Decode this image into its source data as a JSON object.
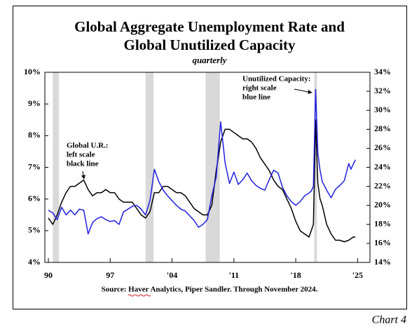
{
  "chart_data": {
    "type": "line",
    "title": [
      "Global Aggregate Unemployment Rate and",
      "Global Unutilized Capacity"
    ],
    "subtitle": "quarterly",
    "source": "Source:  Haver Analytics, Piper Sandler. Through November 2024.",
    "chart_label": "Chart 4",
    "x": [
      1990,
      1990.5,
      1991,
      1991.5,
      1992,
      1992.5,
      1993,
      1993.5,
      1994,
      1994.5,
      1995,
      1995.5,
      1996,
      1996.5,
      1997,
      1997.5,
      1998,
      1998.5,
      1999,
      1999.5,
      2000,
      2000.5,
      2001,
      2001.5,
      2002,
      2002.5,
      2003,
      2003.5,
      2004,
      2004.5,
      2005,
      2005.5,
      2006,
      2006.5,
      2007,
      2007.5,
      2008,
      2008.5,
      2009,
      2009.5,
      2010,
      2010.5,
      2011,
      2011.5,
      2012,
      2012.5,
      2013,
      2013.5,
      2014,
      2014.5,
      2015,
      2015.5,
      2016,
      2016.5,
      2017,
      2017.5,
      2018,
      2018.5,
      2019,
      2019.5,
      2019.75,
      2020,
      2020.25,
      2020.5,
      2020.75,
      2021,
      2021.5,
      2022,
      2022.5,
      2023,
      2023.5,
      2024,
      2024.25,
      2024.5,
      2024.75
    ],
    "series": [
      {
        "name": "Global U.R.",
        "color": "#000000",
        "axis": "y",
        "values": [
          5.4,
          5.2,
          5.5,
          5.9,
          6.2,
          6.4,
          6.4,
          6.5,
          6.6,
          6.3,
          6.1,
          6.2,
          6.2,
          6.3,
          6.2,
          6.2,
          6.0,
          5.9,
          5.9,
          5.9,
          5.7,
          5.5,
          5.4,
          5.6,
          6.2,
          6.2,
          6.4,
          6.4,
          6.3,
          6.2,
          6.2,
          6.1,
          5.9,
          5.7,
          5.6,
          5.5,
          5.5,
          5.8,
          6.9,
          7.8,
          8.2,
          8.2,
          8.1,
          8.0,
          7.9,
          7.9,
          7.8,
          7.6,
          7.3,
          7.1,
          6.9,
          6.6,
          6.4,
          6.3,
          6.0,
          5.7,
          5.3,
          5.0,
          4.9,
          4.8,
          5.0,
          5.2,
          8.5,
          6.5,
          6.0,
          5.8,
          5.2,
          4.9,
          4.7,
          4.7,
          4.65,
          4.7,
          4.75,
          4.8,
          4.8
        ]
      },
      {
        "name": "Unutilized Capacity",
        "color": "#2020e0",
        "axis": "y2",
        "values": [
          19.5,
          19.2,
          18.5,
          19.8,
          19.0,
          19.5,
          19.0,
          19.6,
          19.5,
          17.0,
          18.2,
          18.6,
          18.8,
          18.5,
          18.3,
          18.4,
          18.0,
          19.3,
          19.6,
          19.9,
          20.0,
          19.6,
          19.0,
          20.5,
          23.8,
          22.5,
          21.6,
          21.0,
          20.5,
          20.0,
          19.6,
          19.4,
          18.9,
          18.4,
          17.7,
          18.0,
          18.5,
          21.0,
          23.0,
          28.8,
          24.5,
          22.3,
          23.5,
          22.2,
          22.7,
          23.4,
          22.6,
          22.1,
          21.8,
          21.6,
          22.7,
          23.7,
          23.4,
          21.9,
          21.0,
          20.4,
          20.0,
          20.4,
          21.0,
          21.3,
          21.5,
          22.0,
          32.2,
          25.5,
          23.7,
          22.5,
          21.6,
          20.8,
          21.7,
          22.1,
          22.6,
          24.4,
          23.8,
          24.3,
          24.8
        ]
      }
    ],
    "annotations": [
      {
        "lines": [
          "Global U.R.:",
          "left scale",
          "black line"
        ]
      },
      {
        "lines": [
          "Unutilized Capacity:",
          "right scale",
          "blue line"
        ]
      }
    ],
    "shaded_periods": [
      [
        1990.5,
        1991.2
      ],
      [
        2001.0,
        2001.9
      ],
      [
        2007.8,
        2009.4
      ],
      [
        2020.1,
        2020.4
      ]
    ],
    "shade_color": "#d9d9d9",
    "xlim": [
      1989.6,
      2026.4
    ],
    "xticks": [
      {
        "value": 1990,
        "label": "90"
      },
      {
        "value": 1997,
        "label": "97"
      },
      {
        "value": 2004,
        "label": "'04"
      },
      {
        "value": 2011,
        "label": "'11"
      },
      {
        "value": 2018,
        "label": "'18"
      },
      {
        "value": 2025,
        "label": "'25"
      }
    ],
    "ylim": [
      4,
      10
    ],
    "yticks": [
      {
        "value": 4,
        "label": "4%"
      },
      {
        "value": 5,
        "label": "5%"
      },
      {
        "value": 6,
        "label": "6%"
      },
      {
        "value": 7,
        "label": "7%"
      },
      {
        "value": 8,
        "label": "8%"
      },
      {
        "value": 9,
        "label": "9%"
      },
      {
        "value": 10,
        "label": "10%"
      }
    ],
    "y2lim": [
      14,
      34
    ],
    "y2ticks": [
      {
        "value": 14,
        "label": "14%"
      },
      {
        "value": 16,
        "label": "16%"
      },
      {
        "value": 18,
        "label": "18%"
      },
      {
        "value": 20,
        "label": "20%"
      },
      {
        "value": 22,
        "label": "22%"
      },
      {
        "value": 24,
        "label": "24%"
      },
      {
        "value": 26,
        "label": "26%"
      },
      {
        "value": 28,
        "label": "28%"
      },
      {
        "value": 30,
        "label": "30%"
      },
      {
        "value": 32,
        "label": "32%"
      },
      {
        "value": 34,
        "label": "34%"
      }
    ]
  }
}
